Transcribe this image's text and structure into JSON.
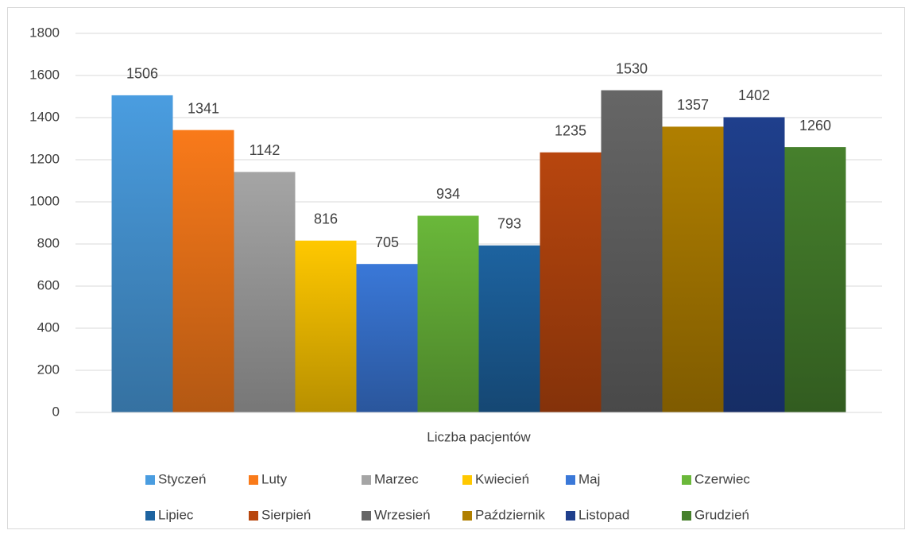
{
  "chart_data": {
    "type": "bar",
    "categories": [
      "Liczba pacjentów"
    ],
    "series": [
      {
        "name": "Styczeń",
        "color": "#4a9de0",
        "values": [
          1506
        ]
      },
      {
        "name": "Luty",
        "color": "#f97a1a",
        "values": [
          1341
        ]
      },
      {
        "name": "Marzec",
        "color": "#a5a5a5",
        "values": [
          1142
        ]
      },
      {
        "name": "Kwiecień",
        "color": "#ffc800",
        "values": [
          816
        ]
      },
      {
        "name": "Maj",
        "color": "#3a78d8",
        "values": [
          705
        ]
      },
      {
        "name": "Czerwiec",
        "color": "#6ab83a",
        "values": [
          934
        ]
      },
      {
        "name": "Lipiec",
        "color": "#1d63a0",
        "values": [
          793
        ]
      },
      {
        "name": "Sierpień",
        "color": "#b8460e",
        "values": [
          1235
        ]
      },
      {
        "name": "Wrzesień",
        "color": "#666666",
        "values": [
          1530
        ]
      },
      {
        "name": "Październik",
        "color": "#b07f00",
        "values": [
          1357
        ]
      },
      {
        "name": "Listopad",
        "color": "#1f3f8c",
        "values": [
          1402
        ]
      },
      {
        "name": "Grudzień",
        "color": "#46802c",
        "values": [
          1260
        ]
      }
    ],
    "ylim": [
      0,
      1800
    ],
    "yticks": [
      0,
      200,
      400,
      600,
      800,
      1000,
      1200,
      1400,
      1600,
      1800
    ],
    "grid": true,
    "legend": "bottom"
  }
}
